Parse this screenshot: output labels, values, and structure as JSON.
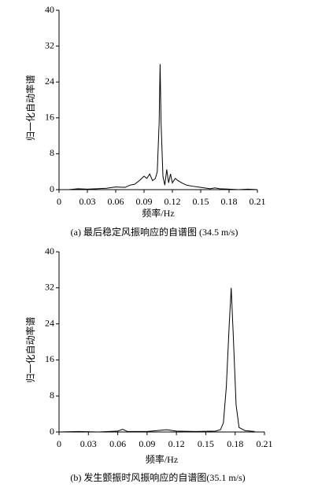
{
  "chart_data": [
    {
      "type": "line",
      "caption": "(a) 最后稳定风振响应的自谱图 (34.5 m/s)",
      "xlabel": "频率/Hz",
      "ylabel": "归一化自动率谱",
      "color": "#000000",
      "x": [
        0,
        0.01,
        0.02,
        0.03,
        0.04,
        0.05,
        0.06,
        0.07,
        0.075,
        0.08,
        0.085,
        0.09,
        0.093,
        0.096,
        0.099,
        0.102,
        0.104,
        0.106,
        0.107,
        0.108,
        0.11,
        0.112,
        0.114,
        0.116,
        0.118,
        0.12,
        0.123,
        0.126,
        0.13,
        0.135,
        0.14,
        0.15,
        0.16,
        0.165,
        0.17,
        0.18,
        0.19,
        0.2,
        0.21
      ],
      "values": [
        0,
        0,
        0.2,
        0.1,
        0.2,
        0.3,
        0.6,
        0.5,
        1,
        1.2,
        2,
        3,
        2.5,
        3.5,
        2,
        2.5,
        4,
        15,
        28,
        15,
        3,
        1,
        4.5,
        1.5,
        3.5,
        1.5,
        2.5,
        2,
        1.5,
        1,
        0.8,
        0.5,
        0.2,
        0.4,
        0.2,
        0.1,
        0,
        0.1,
        0
      ],
      "xlim": [
        0,
        0.21
      ],
      "xticks": [
        0,
        0.03,
        0.06,
        0.09,
        0.12,
        0.15,
        0.18,
        0.21
      ],
      "ylim": [
        0,
        40
      ],
      "yticks": [
        0,
        8,
        16,
        24,
        32,
        40
      ]
    },
    {
      "type": "line",
      "caption": "(b) 发生颤振时风振响应的自谱图(35.1 m/s)",
      "xlabel": "频率/Hz",
      "ylabel": "归一化自动率谱",
      "color": "#000000",
      "x": [
        0,
        0.02,
        0.04,
        0.06,
        0.065,
        0.07,
        0.09,
        0.1,
        0.11,
        0.12,
        0.14,
        0.16,
        0.165,
        0.168,
        0.171,
        0.174,
        0.176,
        0.178,
        0.181,
        0.184,
        0.19,
        0.2
      ],
      "values": [
        0,
        0.1,
        0,
        0.2,
        0.6,
        0.1,
        0.1,
        0.3,
        0.5,
        0.2,
        0.1,
        0.2,
        0.5,
        2,
        10,
        24,
        32,
        22,
        6,
        1,
        0.3,
        0.1
      ],
      "xlim": [
        0,
        0.21
      ],
      "xticks": [
        0,
        0.03,
        0.06,
        0.09,
        0.12,
        0.15,
        0.18,
        0.21
      ],
      "ylim": [
        0,
        40
      ],
      "yticks": [
        0,
        8,
        16,
        24,
        32,
        40
      ]
    }
  ]
}
